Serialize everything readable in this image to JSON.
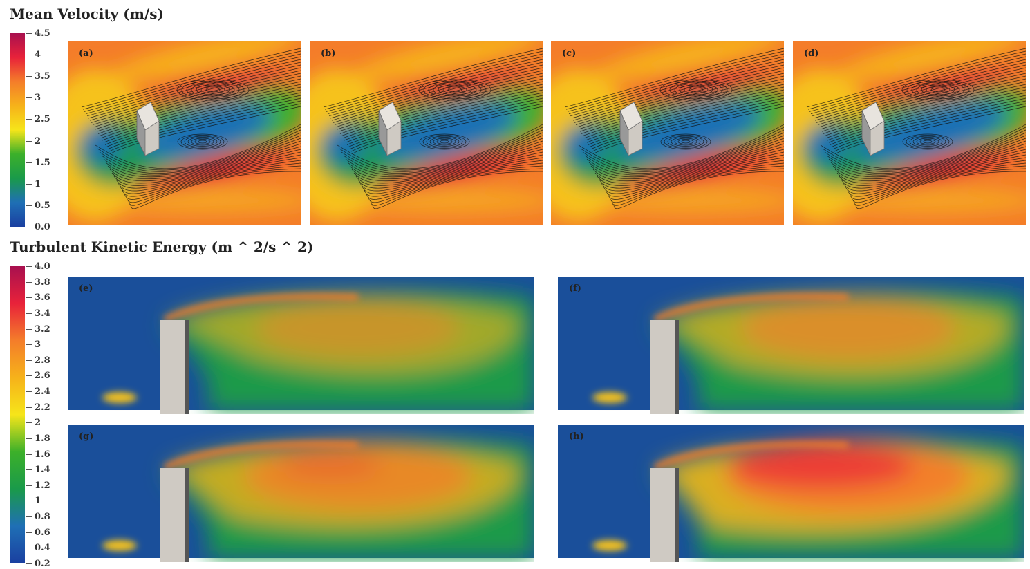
{
  "velocity": {
    "title": "Mean Velocity (m/s)",
    "colorbar_ticks": [
      "4.5",
      "4",
      "3.5",
      "3",
      "2.5",
      "2",
      "1.5",
      "1",
      "0.5",
      "0.0"
    ],
    "range": [
      0,
      4.5
    ],
    "panels": [
      {
        "label": "(a)"
      },
      {
        "label": "(b)"
      },
      {
        "label": "(c)"
      },
      {
        "label": "(d)"
      }
    ]
  },
  "tke": {
    "title": "Turbulent Kinetic Energy (m ^ 2/s ^ 2)",
    "colorbar_ticks": [
      "4.0",
      "3.8",
      "3.6",
      "3.4",
      "3.2",
      "3",
      "2.8",
      "2.6",
      "2.4",
      "2.2",
      "2",
      "1.8",
      "1.6",
      "1.4",
      "1.2",
      "1",
      "0.8",
      "0.6",
      "0.4",
      "0.2"
    ],
    "range": [
      0.2,
      4.0
    ],
    "panels": [
      {
        "label": "(e)",
        "intensity": 0.45
      },
      {
        "label": "(f)",
        "intensity": 0.6
      },
      {
        "label": "(g)",
        "intensity": 0.75
      },
      {
        "label": "(h)",
        "intensity": 0.95
      }
    ]
  },
  "colormap": [
    "#1a3fa0",
    "#1f6fb5",
    "#1a9a4a",
    "#3cb02a",
    "#f6e51a",
    "#f6b21a",
    "#f47d2a",
    "#e8223a",
    "#a8104f"
  ],
  "building_color": "#cfcac3"
}
